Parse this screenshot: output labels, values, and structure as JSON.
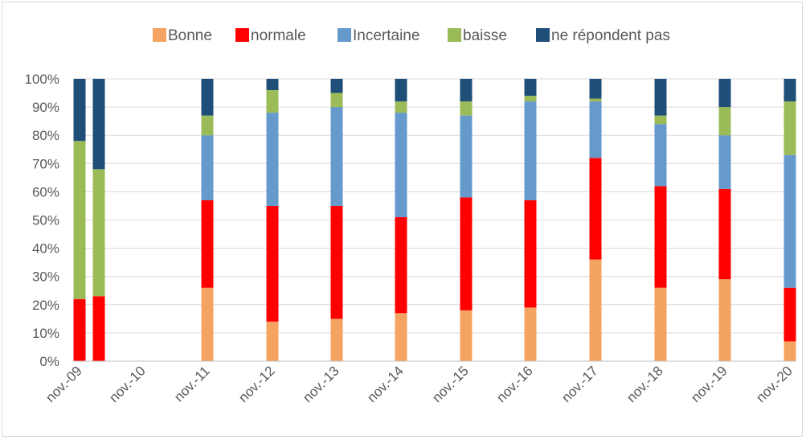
{
  "chart_data": {
    "type": "bar",
    "stacked": true,
    "percent": true,
    "title": "",
    "xlabel": "",
    "ylabel": "",
    "ylim": [
      0,
      100
    ],
    "grid": true,
    "legend_position": "top",
    "y_ticks": [
      "0%",
      "10%",
      "20%",
      "30%",
      "40%",
      "50%",
      "60%",
      "70%",
      "80%",
      "90%",
      "100%"
    ],
    "x_tick_labels": [
      "nov.-09",
      "nov.-10",
      "nov.-11",
      "nov.-12",
      "nov.-13",
      "nov.-14",
      "nov.-15",
      "nov.-16",
      "nov.-17",
      "nov.-18",
      "nov.-19",
      "nov.-20"
    ],
    "bars": [
      {
        "label": "nov.-09",
        "values": [
          0,
          22,
          0,
          56,
          22
        ]
      },
      {
        "label": "",
        "values": [
          0,
          23,
          0,
          45,
          32
        ]
      },
      {
        "label": "nov.-11",
        "values": [
          26,
          31,
          23,
          7,
          13
        ]
      },
      {
        "label": "nov.-12",
        "values": [
          14,
          41,
          33,
          8,
          4
        ]
      },
      {
        "label": "nov.-13",
        "values": [
          15,
          40,
          35,
          5,
          5
        ]
      },
      {
        "label": "nov.-14",
        "values": [
          17,
          34,
          37,
          4,
          8
        ]
      },
      {
        "label": "nov.-15",
        "values": [
          18,
          40,
          29,
          5,
          8
        ]
      },
      {
        "label": "nov.-16",
        "values": [
          19,
          38,
          35,
          2,
          6
        ]
      },
      {
        "label": "nov.-17",
        "values": [
          36,
          36,
          20,
          1,
          7
        ]
      },
      {
        "label": "nov.-18",
        "values": [
          26,
          36,
          22,
          3,
          13
        ]
      },
      {
        "label": "nov.-19",
        "values": [
          29,
          32,
          19,
          10,
          10
        ]
      },
      {
        "label": "nov.-20",
        "values": [
          7,
          19,
          47,
          19,
          8
        ]
      }
    ],
    "series": [
      {
        "name": "Bonne",
        "color": "#f4a460"
      },
      {
        "name": "normale",
        "color": "#ff0000"
      },
      {
        "name": "Incertaine",
        "color": "#6699cc"
      },
      {
        "name": "baisse",
        "color": "#9bbb59"
      },
      {
        "name": "ne répondent pas",
        "color": "#1f4e79"
      }
    ]
  }
}
